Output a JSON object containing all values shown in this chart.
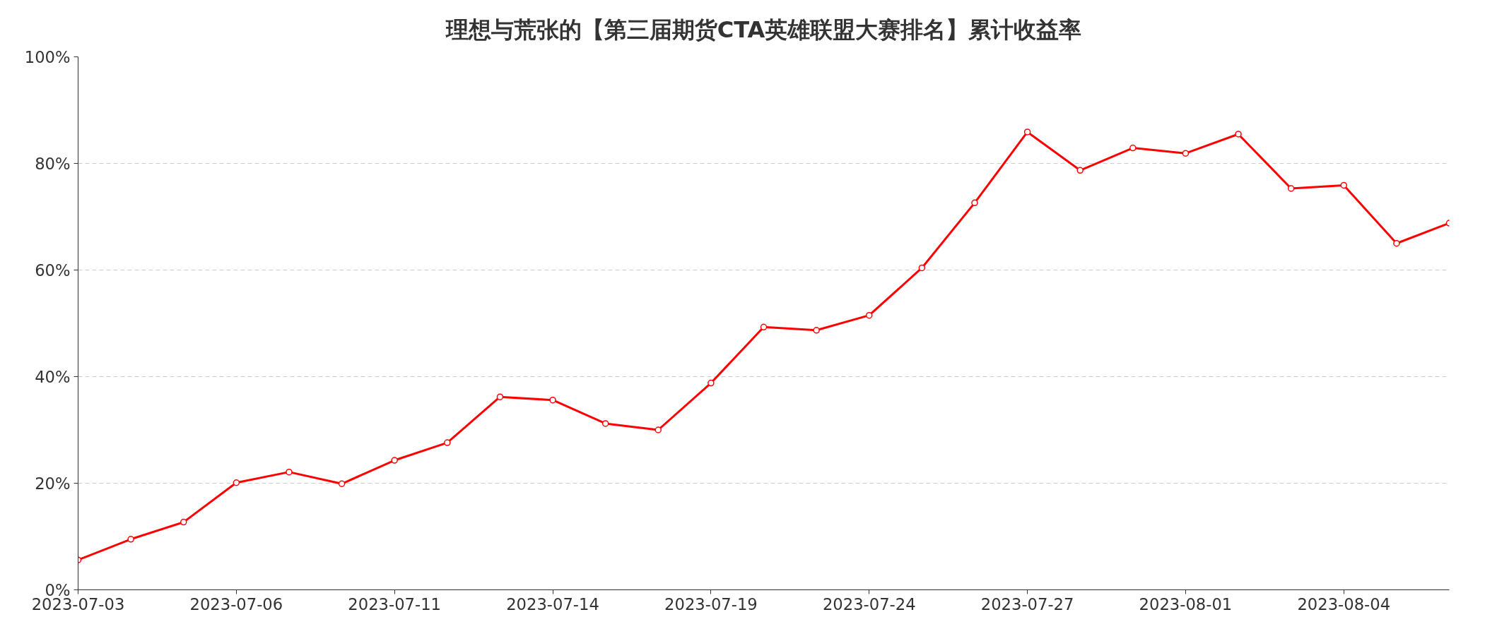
{
  "chart_data": {
    "type": "line",
    "title": "理想与荒张的【第三届期货CTA英雄联盟大赛排名】累计收益率",
    "categories": [
      "2023-07-03",
      null,
      null,
      "2023-07-06",
      null,
      null,
      "2023-07-11",
      null,
      null,
      "2023-07-14",
      null,
      null,
      "2023-07-19",
      null,
      null,
      "2023-07-24",
      null,
      null,
      "2023-07-27",
      null,
      null,
      "2023-08-01",
      null,
      null,
      "2023-08-04",
      null,
      null
    ],
    "series": [
      {
        "color": "#ff0000",
        "values": [
          5.6,
          9.5,
          12.7,
          20.1,
          22.1,
          19.9,
          24.3,
          27.6,
          36.2,
          35.6,
          31.2,
          30.0,
          38.8,
          49.3,
          48.7,
          51.5,
          60.4,
          72.6,
          85.9,
          78.7,
          82.9,
          81.9,
          85.5,
          75.3,
          75.9,
          65.0,
          68.8
        ]
      }
    ],
    "ylim": [
      0,
      100
    ],
    "yticks": [
      {
        "value": 0,
        "label": "0%"
      },
      {
        "value": 20,
        "label": "20%"
      },
      {
        "value": 40,
        "label": "40%"
      },
      {
        "value": 60,
        "label": "60%"
      },
      {
        "value": 80,
        "label": "80%"
      },
      {
        "value": 100,
        "label": "100%"
      }
    ],
    "grid": "y",
    "marker": "circle",
    "line_style": "solid"
  }
}
